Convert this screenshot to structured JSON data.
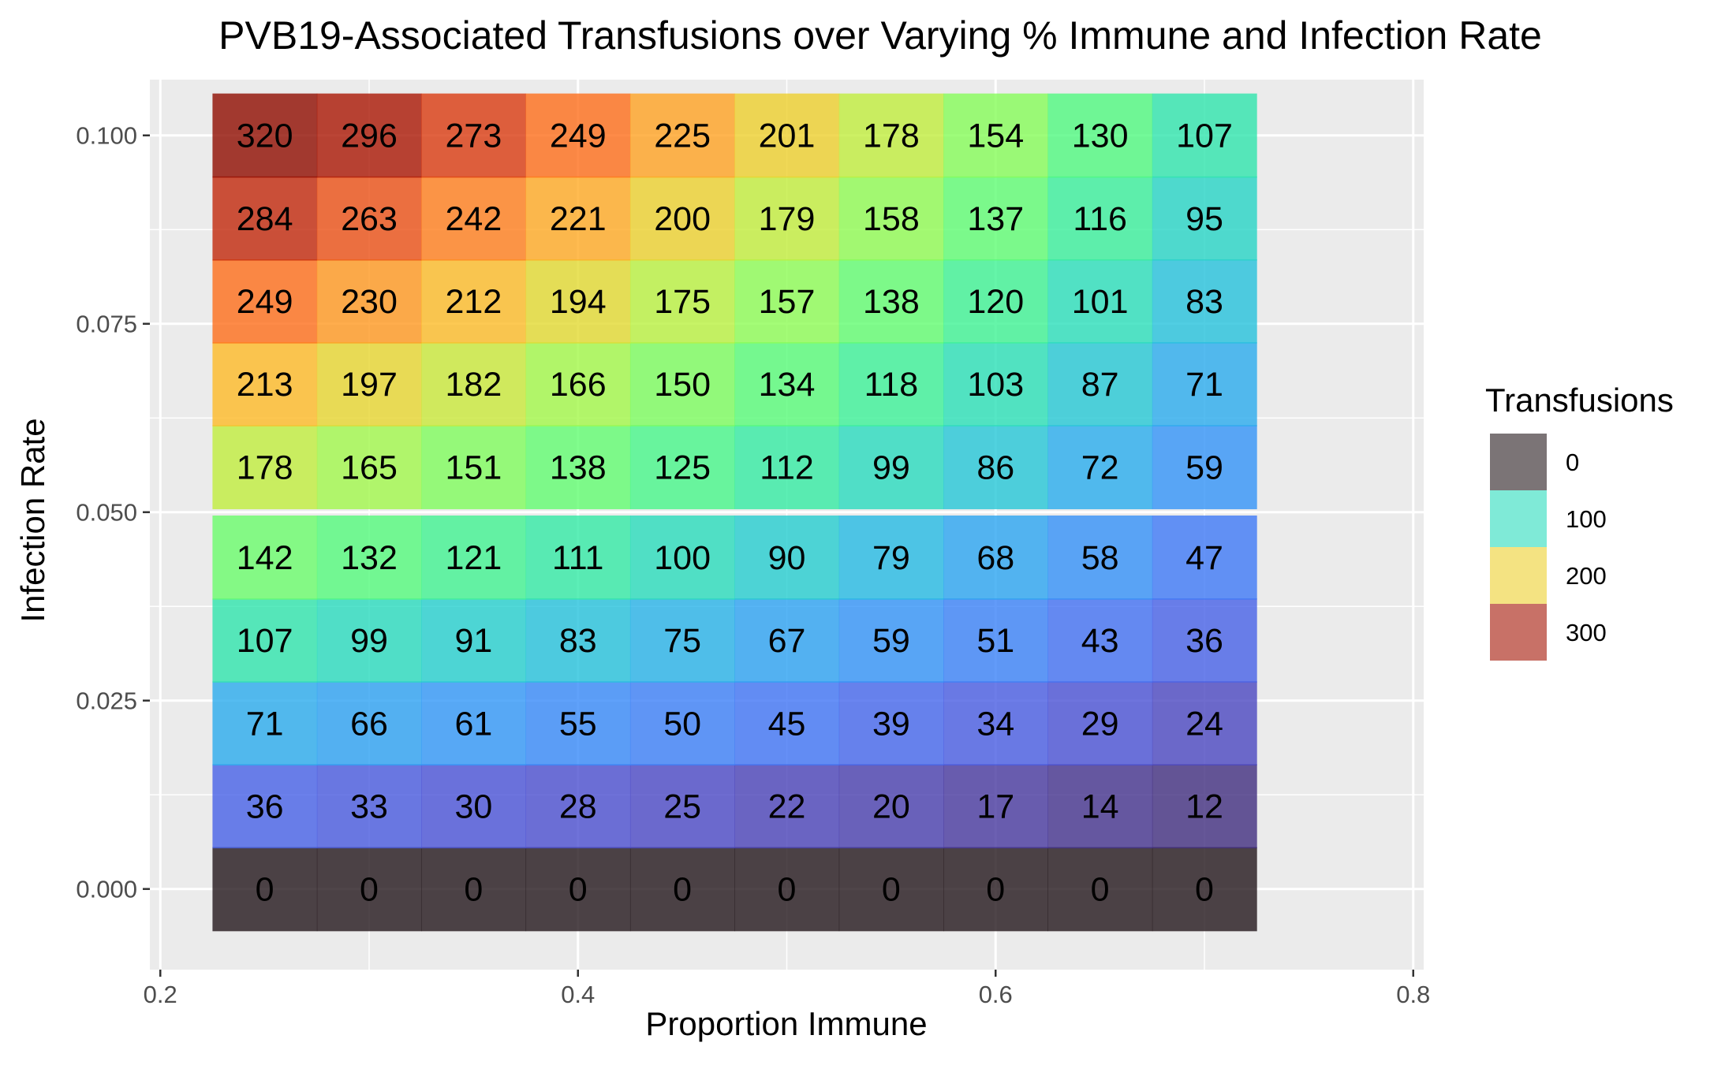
{
  "chart_data": {
    "type": "heatmap",
    "title": "PVB19-Associated Transfusions over Varying % Immune and Infection Rate",
    "xlabel": "Proportion Immune",
    "ylabel": "Infection Rate",
    "x": [
      0.25,
      0.3,
      0.35,
      0.4,
      0.45,
      0.5,
      0.55,
      0.6,
      0.65,
      0.7
    ],
    "y": [
      0.0,
      0.011,
      0.022,
      0.033,
      0.044,
      0.056,
      0.067,
      0.078,
      0.089,
      0.1
    ],
    "x_ticks": [
      "0.2",
      "0.4",
      "0.6",
      "0.8"
    ],
    "x_tick_values": [
      0.2,
      0.4,
      0.6,
      0.8
    ],
    "y_ticks": [
      "0.000",
      "0.025",
      "0.050",
      "0.075",
      "0.100"
    ],
    "y_tick_values": [
      0.0,
      0.025,
      0.05,
      0.075,
      0.1
    ],
    "xlim": [
      0.195,
      0.805
    ],
    "ylim": [
      -0.0107,
      0.1074
    ],
    "values": [
      [
        0,
        0,
        0,
        0,
        0,
        0,
        0,
        0,
        0,
        0
      ],
      [
        36,
        33,
        30,
        28,
        25,
        22,
        20,
        17,
        14,
        12
      ],
      [
        71,
        66,
        61,
        55,
        50,
        45,
        39,
        34,
        29,
        24
      ],
      [
        107,
        99,
        91,
        83,
        75,
        67,
        59,
        51,
        43,
        36
      ],
      [
        142,
        132,
        121,
        111,
        100,
        90,
        79,
        68,
        58,
        47
      ],
      [
        178,
        165,
        151,
        138,
        125,
        112,
        99,
        86,
        72,
        59
      ],
      [
        213,
        197,
        182,
        166,
        150,
        134,
        118,
        103,
        87,
        71
      ],
      [
        249,
        230,
        212,
        194,
        175,
        157,
        138,
        120,
        101,
        83
      ],
      [
        284,
        263,
        242,
        221,
        200,
        179,
        158,
        137,
        116,
        95
      ],
      [
        320,
        296,
        273,
        249,
        225,
        201,
        178,
        154,
        130,
        107
      ]
    ],
    "legend": {
      "title": "Transfusions",
      "entries": [
        "0",
        "100",
        "200",
        "300"
      ],
      "placement": "right"
    },
    "colormap": "turbo",
    "cell_alpha": 0.8,
    "panel_background": "#ebebeb",
    "grid": true,
    "grid_color": "#ffffff"
  }
}
